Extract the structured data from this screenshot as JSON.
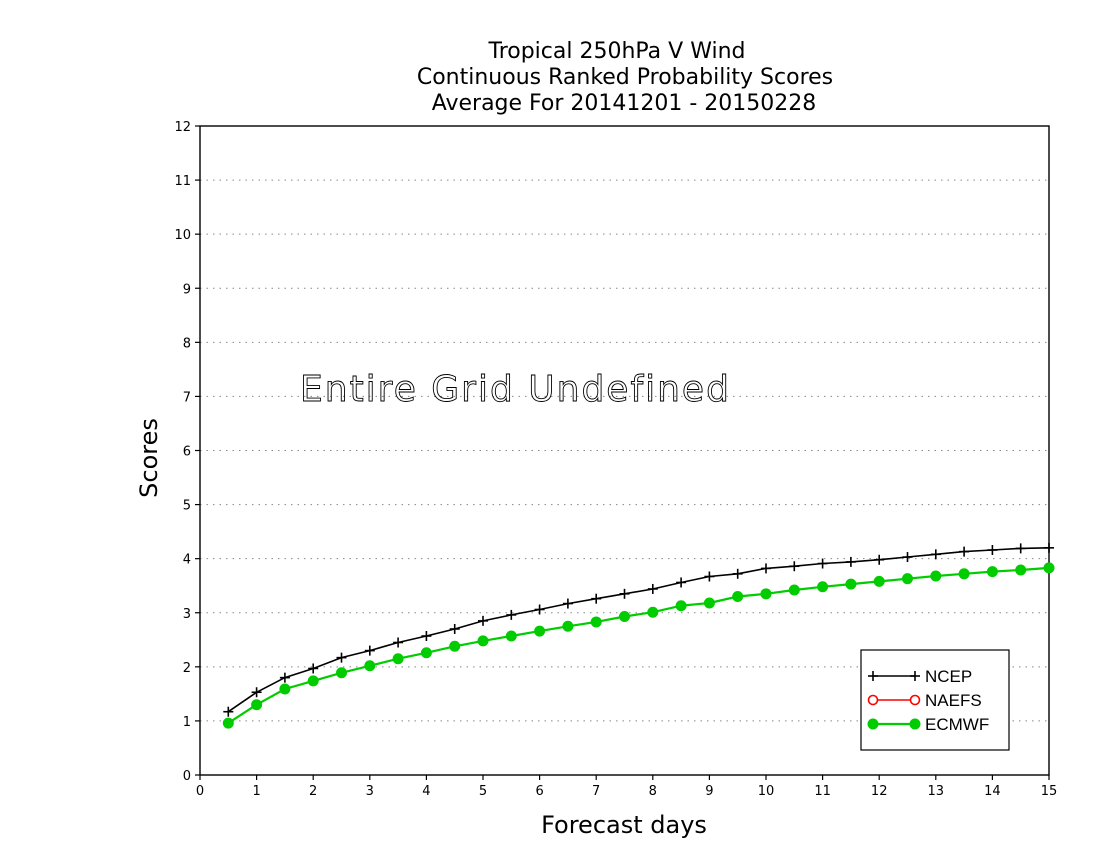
{
  "chart_data": {
    "type": "line",
    "title": [
      "Tropical 250hPa V Wind",
      "Continuous Ranked Probability Scores",
      "Average For 20141201 - 20150228"
    ],
    "xlabel": "Forecast days",
    "ylabel": "Scores",
    "xlim": [
      0,
      15
    ],
    "ylim": [
      0,
      12
    ],
    "xticks": [
      0,
      1,
      2,
      3,
      4,
      5,
      6,
      7,
      8,
      9,
      10,
      11,
      12,
      13,
      14,
      15
    ],
    "yticks": [
      0,
      1,
      2,
      3,
      4,
      5,
      6,
      7,
      8,
      9,
      10,
      11,
      12
    ],
    "grid": "horizontal dotted",
    "legend_position": "bottom-right",
    "annotation": "Entire Grid Undefined",
    "series": [
      {
        "name": "NCEP",
        "color": "#000000",
        "marker": "plus",
        "x": [
          0.5,
          1,
          1.5,
          2,
          2.5,
          3,
          3.5,
          4,
          4.5,
          5,
          5.5,
          6,
          6.5,
          7,
          7.5,
          8,
          8.5,
          9,
          9.5,
          10,
          10.5,
          11,
          11.5,
          12,
          12.5,
          13,
          13.5,
          14,
          14.5,
          15
        ],
        "values": [
          1.17,
          1.53,
          1.8,
          1.97,
          2.17,
          2.3,
          2.45,
          2.57,
          2.7,
          2.85,
          2.96,
          3.06,
          3.17,
          3.26,
          3.35,
          3.44,
          3.56,
          3.67,
          3.72,
          3.82,
          3.86,
          3.91,
          3.94,
          3.98,
          4.03,
          4.08,
          4.13,
          4.16,
          4.19,
          4.2
        ]
      },
      {
        "name": "NAEFS",
        "color": "#ff0000",
        "marker": "open-circle",
        "x": [],
        "values": []
      },
      {
        "name": "ECMWF",
        "color": "#00cc00",
        "marker": "filled-circle",
        "x": [
          0.5,
          1,
          1.5,
          2,
          2.5,
          3,
          3.5,
          4,
          4.5,
          5,
          5.5,
          6,
          6.5,
          7,
          7.5,
          8,
          8.5,
          9,
          9.5,
          10,
          10.5,
          11,
          11.5,
          12,
          12.5,
          13,
          13.5,
          14,
          14.5,
          15
        ],
        "values": [
          0.96,
          1.3,
          1.59,
          1.74,
          1.89,
          2.02,
          2.15,
          2.26,
          2.38,
          2.48,
          2.57,
          2.66,
          2.75,
          2.83,
          2.93,
          3.01,
          3.13,
          3.18,
          3.3,
          3.35,
          3.42,
          3.48,
          3.53,
          3.58,
          3.63,
          3.68,
          3.72,
          3.76,
          3.79,
          3.83
        ]
      }
    ]
  }
}
